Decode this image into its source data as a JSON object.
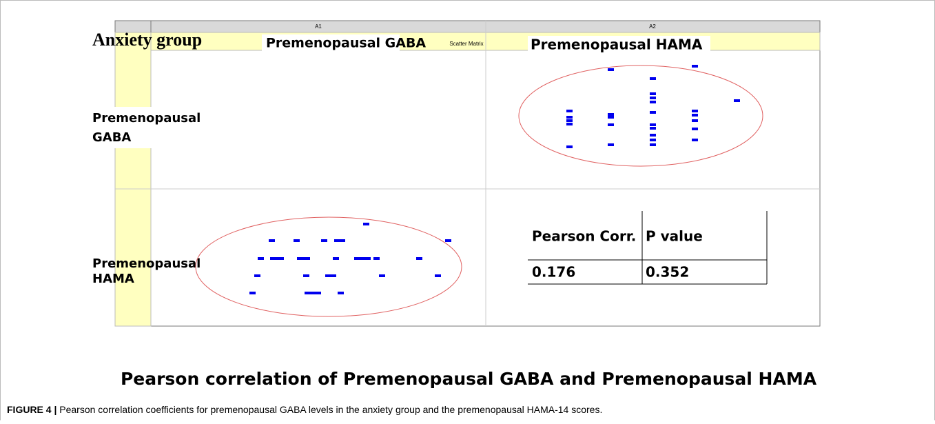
{
  "figure": {
    "col_headers": [
      "A1",
      "A2"
    ],
    "group_label": "Anxiety group",
    "col_labels": [
      "Premenopausal GABA",
      "Premenopausal HAMA"
    ],
    "matrix_title": "Scatter Matrix",
    "row_labels": [
      [
        "Premenopausal",
        "GABA"
      ],
      [
        "Premenopausal",
        "HAMA"
      ]
    ],
    "table": {
      "header": [
        "Pearson Corr.",
        "P value"
      ],
      "rows": [
        [
          "0.176",
          "0.352"
        ]
      ]
    },
    "title": "Pearson correlation of Premenopausal GABA and Premenopausal HAMA",
    "caption": {
      "label": "FIGURE 4 |",
      "text": "Pearson correlation coefficients for premenopausal GABA levels in the anxiety group and the premenopausal HAMA-14 scores."
    }
  }
}
